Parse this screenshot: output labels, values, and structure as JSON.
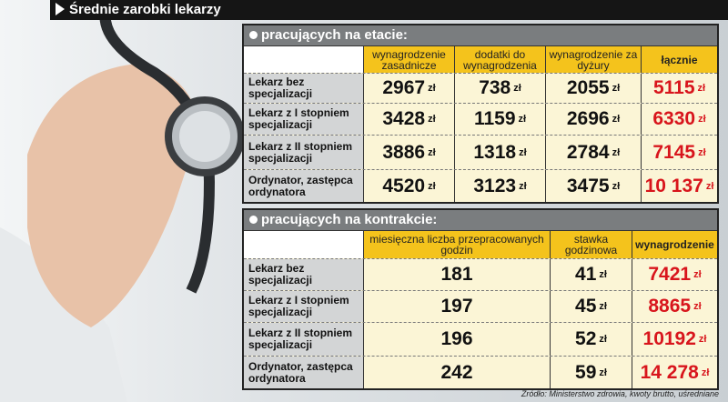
{
  "title": "Średnie zarobki lekarzy",
  "etat": {
    "section": "pracujących na etacie:",
    "headers": [
      "wynagrodzenie zasadnicze",
      "dodatki do wynagrodzenia",
      "wynagrodzenie za dyżury",
      "łącznie"
    ],
    "rows": [
      {
        "label": "Lekarz bez specjalizacji",
        "values": [
          "2967",
          "738",
          "2055",
          "5115"
        ]
      },
      {
        "label": "Lekarz z I stopniem specjalizacji",
        "values": [
          "3428",
          "1159",
          "2696",
          "6330"
        ]
      },
      {
        "label": "Lekarz z II stopniem specjalizacji",
        "values": [
          "3886",
          "1318",
          "2784",
          "7145"
        ]
      },
      {
        "label": "Ordynator, zastępca ordynatora",
        "values": [
          "4520",
          "3123",
          "3475",
          "10 137"
        ]
      }
    ]
  },
  "kontrakt": {
    "section": "pracujących na kontrakcie:",
    "headers": [
      "miesięczna liczba przepracowanych godzin",
      "stawka godzinowa",
      "wynagrodzenie"
    ],
    "rows": [
      {
        "label": "Lekarz bez specjalizacji",
        "values": [
          "181",
          "41",
          "7421"
        ]
      },
      {
        "label": "Lekarz z I stopniem specjalizacji",
        "values": [
          "197",
          "45",
          "8865"
        ]
      },
      {
        "label": "Lekarz z II stopniem specjalizacji",
        "values": [
          "196",
          "52",
          "10192"
        ]
      },
      {
        "label": "Ordynator, zastępca ordynatora",
        "values": [
          "242",
          "59",
          "14 278"
        ]
      }
    ]
  },
  "currency": "zł",
  "source": "Źródło: Ministerstwo zdrowia, kwoty brutto, uśredniane",
  "colors": {
    "header_yellow": "#f4c31c",
    "total_red": "#d8151c",
    "section_gray": "#7a7d7f"
  }
}
